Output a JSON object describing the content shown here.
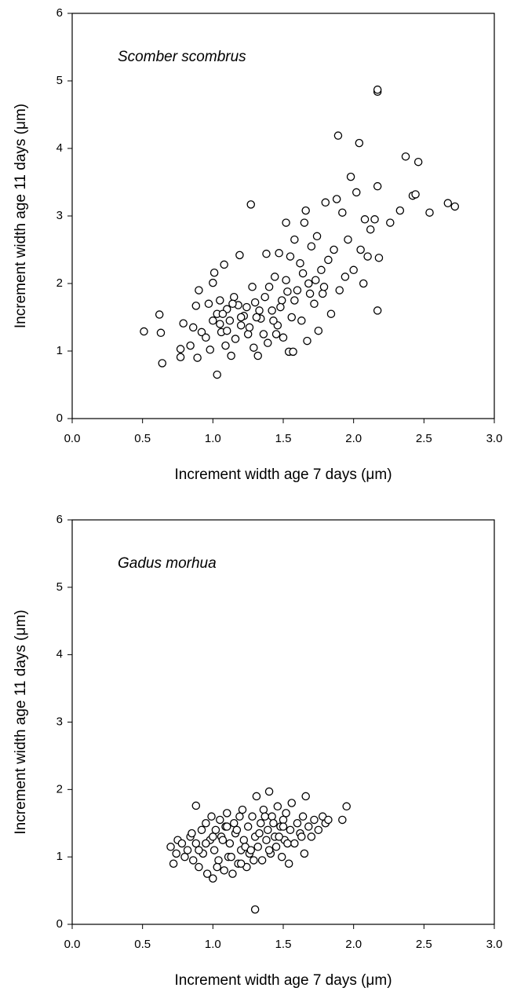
{
  "chart_data": [
    {
      "type": "scatter",
      "annotation": "Scomber scombrus",
      "x_label": "Increment width age 7 days (μm)",
      "y_label": "Increment width age 11 days (μm)",
      "color": "#000000",
      "xlim": [
        0,
        3
      ],
      "ylim": [
        0,
        6
      ],
      "xticks": [
        {
          "value": 0,
          "label": "0.0"
        },
        {
          "value": 0.5,
          "label": "0.5"
        },
        {
          "value": 1,
          "label": "1.0"
        },
        {
          "value": 1.5,
          "label": "1.5"
        },
        {
          "value": 2,
          "label": "2.0"
        },
        {
          "value": 2.5,
          "label": "2.5"
        },
        {
          "value": 3,
          "label": "3.0"
        }
      ],
      "yticks": [
        0,
        1,
        2,
        3,
        4,
        5,
        6
      ],
      "x": [
        0.51,
        0.62,
        0.63,
        0.64,
        0.77,
        0.77,
        0.79,
        0.84,
        0.86,
        0.88,
        0.89,
        0.9,
        0.92,
        0.97,
        0.98,
        1.0,
        1.01,
        1.03,
        1.03,
        1.05,
        1.06,
        1.08,
        1.09,
        1.1,
        1.12,
        1.13,
        1.15,
        1.16,
        1.18,
        1.19,
        1.2,
        1.22,
        1.25,
        1.27,
        1.28,
        1.29,
        1.3,
        1.32,
        1.34,
        1.36,
        1.38,
        1.39,
        1.4,
        1.42,
        1.44,
        1.46,
        1.47,
        1.49,
        1.5,
        1.52,
        1.53,
        1.54,
        1.55,
        1.56,
        1.57,
        1.58,
        1.6,
        1.62,
        1.63,
        1.65,
        1.66,
        1.67,
        1.68,
        1.7,
        1.72,
        1.74,
        1.75,
        1.77,
        1.78,
        1.8,
        1.82,
        1.84,
        1.86,
        1.88,
        1.89,
        1.9,
        1.92,
        1.94,
        1.96,
        1.98,
        2.0,
        2.02,
        2.04,
        2.05,
        2.07,
        2.08,
        2.1,
        2.12,
        2.15,
        2.17,
        2.17,
        2.17,
        2.17,
        2.18,
        2.26,
        2.33,
        2.37,
        2.42,
        2.44,
        2.46,
        2.54,
        2.67,
        2.72,
        1.05,
        1.1,
        1.14,
        1.2,
        1.26,
        1.33,
        1.37,
        1.43,
        1.48,
        1.52,
        1.58,
        1.64,
        1.69,
        1.73,
        1.79,
        0.95,
        1.0,
        1.07,
        1.24,
        1.31,
        1.45
      ],
      "values": [
        1.29,
        1.54,
        1.27,
        0.82,
        1.03,
        0.91,
        1.41,
        1.08,
        1.35,
        1.67,
        0.9,
        1.9,
        1.28,
        1.7,
        1.02,
        2.01,
        2.16,
        0.65,
        1.55,
        1.75,
        1.28,
        2.28,
        1.08,
        1.62,
        1.45,
        0.93,
        1.8,
        1.18,
        1.68,
        2.42,
        1.38,
        1.52,
        1.25,
        3.17,
        1.95,
        1.05,
        1.72,
        0.93,
        1.48,
        1.25,
        2.44,
        1.12,
        1.95,
        1.6,
        2.1,
        1.38,
        2.45,
        1.75,
        1.2,
        2.9,
        1.88,
        0.99,
        2.4,
        1.5,
        0.99,
        2.65,
        1.9,
        2.3,
        1.45,
        2.9,
        3.08,
        1.15,
        2.0,
        2.55,
        1.7,
        2.7,
        1.3,
        2.2,
        1.85,
        3.2,
        2.35,
        1.55,
        2.5,
        3.25,
        4.19,
        1.9,
        3.05,
        2.1,
        2.65,
        3.58,
        2.2,
        3.35,
        4.08,
        2.5,
        2.0,
        2.95,
        2.4,
        2.8,
        2.95,
        4.84,
        4.87,
        3.44,
        1.6,
        2.38,
        2.9,
        3.08,
        3.88,
        3.3,
        3.32,
        3.8,
        3.05,
        3.19,
        3.14,
        1.4,
        1.3,
        1.7,
        1.5,
        1.35,
        1.6,
        1.8,
        1.45,
        1.65,
        2.05,
        1.75,
        2.15,
        1.85,
        2.05,
        1.95,
        1.2,
        1.45,
        1.55,
        1.65,
        1.5,
        1.25
      ]
    },
    {
      "type": "scatter",
      "annotation": "Gadus morhua",
      "x_label": "Increment width age 7 days (μm)",
      "y_label": "Increment width age 11 days (μm)",
      "color": "#000000",
      "xlim": [
        0,
        3
      ],
      "ylim": [
        0,
        6
      ],
      "xticks": [
        {
          "value": 0,
          "label": "0.0"
        },
        {
          "value": 0.5,
          "label": "0.5"
        },
        {
          "value": 1,
          "label": "1.0"
        },
        {
          "value": 1.5,
          "label": "1.5"
        },
        {
          "value": 2,
          "label": "2.0"
        },
        {
          "value": 2.5,
          "label": "2.5"
        },
        {
          "value": 3,
          "label": "3.0"
        }
      ],
      "yticks": [
        0,
        1,
        2,
        3,
        4,
        5,
        6
      ],
      "x": [
        0.7,
        0.72,
        0.74,
        0.75,
        0.78,
        0.8,
        0.82,
        0.84,
        0.86,
        0.88,
        0.88,
        0.9,
        0.92,
        0.93,
        0.95,
        0.96,
        0.98,
        0.99,
        1.0,
        1.01,
        1.02,
        1.04,
        1.05,
        1.06,
        1.08,
        1.09,
        1.1,
        1.11,
        1.12,
        1.14,
        1.15,
        1.16,
        1.18,
        1.19,
        1.2,
        1.21,
        1.22,
        1.24,
        1.25,
        1.26,
        1.28,
        1.29,
        1.3,
        1.3,
        1.31,
        1.32,
        1.34,
        1.35,
        1.36,
        1.38,
        1.39,
        1.4,
        1.41,
        1.42,
        1.44,
        1.45,
        1.46,
        1.48,
        1.49,
        1.5,
        1.51,
        1.52,
        1.54,
        1.55,
        1.56,
        1.58,
        1.6,
        1.62,
        1.64,
        1.65,
        1.66,
        1.68,
        1.7,
        1.72,
        1.75,
        1.78,
        1.8,
        1.82,
        1.92,
        1.95,
        0.85,
        0.95,
        1.03,
        1.13,
        1.23,
        1.33,
        1.43,
        1.53,
        1.63,
        1.07,
        1.17,
        1.27,
        1.37,
        1.47,
        0.9,
        1.0,
        1.1,
        1.2,
        1.4,
        1.5
      ],
      "values": [
        1.15,
        0.9,
        1.05,
        1.25,
        1.2,
        1.0,
        1.1,
        1.3,
        0.95,
        1.76,
        1.2,
        0.85,
        1.4,
        1.05,
        1.5,
        0.75,
        1.25,
        1.6,
        0.68,
        1.1,
        1.4,
        0.95,
        1.55,
        1.3,
        0.8,
        1.45,
        1.65,
        1.0,
        1.2,
        0.75,
        1.5,
        1.35,
        0.9,
        1.6,
        1.1,
        1.7,
        1.25,
        0.85,
        1.45,
        1.05,
        1.6,
        0.95,
        1.3,
        0.22,
        1.9,
        1.15,
        1.5,
        0.95,
        1.7,
        1.25,
        1.4,
        1.97,
        1.05,
        1.6,
        1.3,
        1.15,
        1.75,
        1.45,
        1.0,
        1.55,
        1.25,
        1.65,
        0.9,
        1.4,
        1.8,
        1.2,
        1.5,
        1.35,
        1.6,
        1.05,
        1.9,
        1.45,
        1.3,
        1.55,
        1.4,
        1.6,
        1.5,
        1.55,
        1.55,
        1.75,
        1.35,
        1.2,
        0.85,
        1.0,
        1.15,
        1.35,
        1.5,
        1.2,
        1.3,
        1.25,
        1.4,
        1.1,
        1.6,
        1.3,
        1.1,
        1.3,
        1.45,
        0.9,
        1.1,
        1.45
      ]
    }
  ]
}
